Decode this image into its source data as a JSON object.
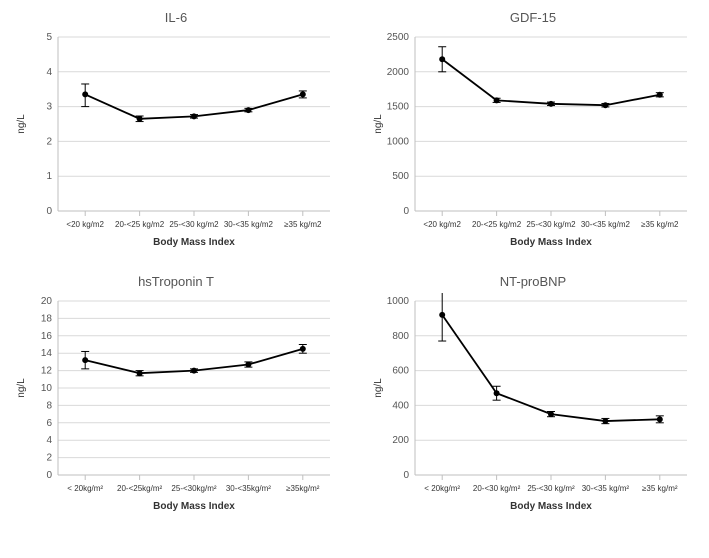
{
  "layout": {
    "cols": 2,
    "rows": 2
  },
  "axis_color": "#bfbfbf",
  "grid_color": "#d9d9d9",
  "line_color": "#000000",
  "marker_color": "#000000",
  "background_color": "#ffffff",
  "title_fontsize": 13,
  "tick_fontsize": 10,
  "axis_label_fontsize": 10,
  "cat_label_fontsize": 8,
  "marker_radius": 3,
  "line_width": 1.8,
  "error_cap_halfwidth": 4,
  "xlabel": "Body Mass Index",
  "ylabel": "ng/L",
  "panels": [
    {
      "title": "IL-6",
      "categories": [
        "<20 kg/m2",
        "20-<25 kg/m2",
        "25-<30 kg/m2",
        "30-<35 kg/m2",
        "≥35 kg/m2"
      ],
      "values": [
        3.35,
        2.65,
        2.72,
        2.9,
        3.35
      ],
      "err_lo": [
        0.35,
        0.08,
        0.05,
        0.05,
        0.1
      ],
      "err_hi": [
        0.3,
        0.08,
        0.05,
        0.05,
        0.1
      ],
      "ylim": [
        0,
        5
      ],
      "yticks": [
        0,
        1,
        2,
        3,
        4,
        5
      ]
    },
    {
      "title": "GDF-15",
      "categories": [
        "<20 kg/m2",
        "20-<25 kg/m2",
        "25-<30 kg/m2",
        "30-<35 kg/m2",
        "≥35 kg/m2"
      ],
      "values": [
        2180,
        1590,
        1540,
        1520,
        1670
      ],
      "err_lo": [
        180,
        30,
        25,
        25,
        30
      ],
      "err_hi": [
        180,
        30,
        25,
        25,
        30
      ],
      "ylim": [
        0,
        2500
      ],
      "yticks": [
        0,
        500,
        1000,
        1500,
        2000,
        2500
      ]
    },
    {
      "title": "hsTroponin T",
      "categories": [
        "< 20kg/m²",
        "20-<25kg/m²",
        "25-<30kg/m²",
        "30-<35kg/m²",
        "≥35kg/m²"
      ],
      "values": [
        13.2,
        11.7,
        12.0,
        12.7,
        14.5
      ],
      "err_lo": [
        1.0,
        0.3,
        0.2,
        0.3,
        0.5
      ],
      "err_hi": [
        1.0,
        0.3,
        0.2,
        0.3,
        0.5
      ],
      "ylim": [
        0,
        20
      ],
      "yticks": [
        0,
        2,
        4,
        6,
        8,
        10,
        12,
        14,
        16,
        18,
        20
      ]
    },
    {
      "title": "NT-proBNP",
      "categories": [
        "< 20kg/m²",
        "20-<30 kg/m²",
        "25-<30 kg/m²",
        "30-<35 kg/m²",
        "≥35 kg/m²"
      ],
      "values": [
        920,
        470,
        350,
        310,
        320
      ],
      "err_lo": [
        150,
        40,
        15,
        15,
        20
      ],
      "err_hi": [
        150,
        40,
        15,
        15,
        20
      ],
      "ylim": [
        0,
        1000
      ],
      "yticks": [
        0,
        200,
        400,
        600,
        800,
        1000
      ]
    }
  ]
}
